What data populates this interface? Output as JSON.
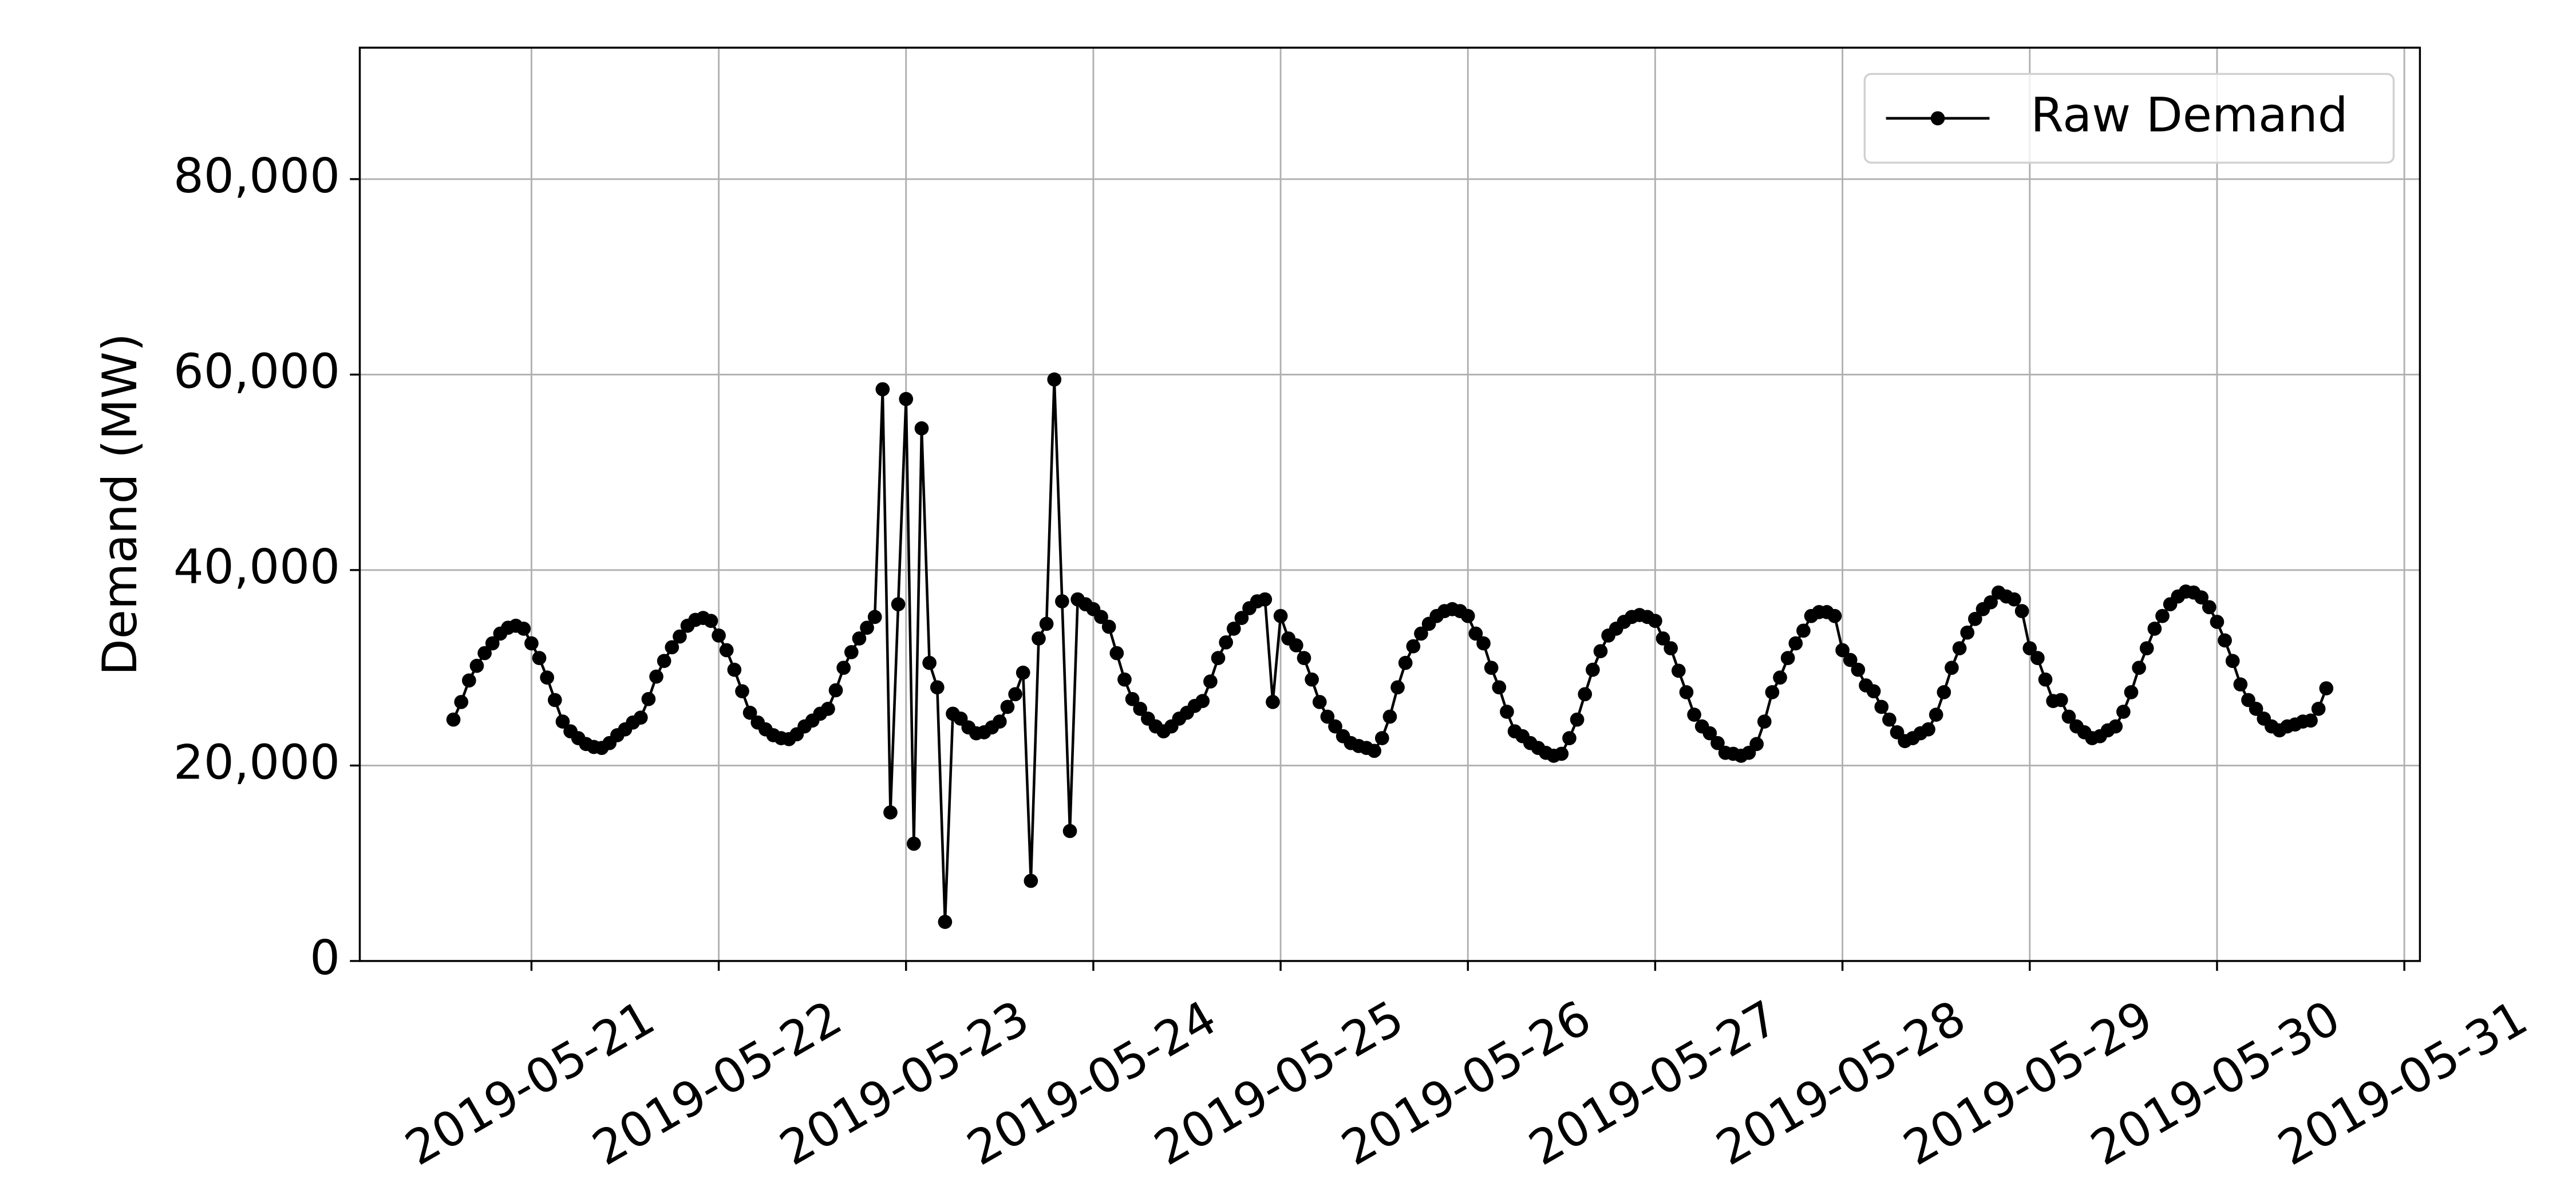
{
  "chart_data": {
    "type": "line",
    "y_label": "Demand (MW)",
    "legend": "upper right",
    "grid": true,
    "ylim": [
      0,
      93450
    ],
    "yticks": [
      0,
      {
        "value": 20000,
        "label": "20,000"
      },
      {
        "value": 40000,
        "label": "40,000"
      },
      {
        "value": 60000,
        "label": "60,000"
      },
      {
        "value": 80000,
        "label": "80,000"
      }
    ],
    "xlim": [
      "2019-05-20 02:00",
      "2019-05-31 02:00"
    ],
    "xticks": [
      "2019-05-21",
      "2019-05-22",
      "2019-05-23",
      "2019-05-24",
      "2019-05-25",
      "2019-05-26",
      "2019-05-27",
      "2019-05-28",
      "2019-05-29",
      "2019-05-30",
      "2019-05-31"
    ],
    "x": [
      "2019-05-20 14:00",
      "2019-05-20 15:00",
      "2019-05-20 16:00",
      "2019-05-20 17:00",
      "2019-05-20 18:00",
      "2019-05-20 19:00",
      "2019-05-20 20:00",
      "2019-05-20 21:00",
      "2019-05-20 22:00",
      "2019-05-20 23:00",
      "2019-05-21 00:00",
      "2019-05-21 01:00",
      "2019-05-21 02:00",
      "2019-05-21 03:00",
      "2019-05-21 04:00",
      "2019-05-21 05:00",
      "2019-05-21 06:00",
      "2019-05-21 07:00",
      "2019-05-21 08:00",
      "2019-05-21 09:00",
      "2019-05-21 10:00",
      "2019-05-21 11:00",
      "2019-05-21 12:00",
      "2019-05-21 13:00",
      "2019-05-21 14:00",
      "2019-05-21 15:00",
      "2019-05-21 16:00",
      "2019-05-21 17:00",
      "2019-05-21 18:00",
      "2019-05-21 19:00",
      "2019-05-21 20:00",
      "2019-05-21 21:00",
      "2019-05-21 22:00",
      "2019-05-21 23:00",
      "2019-05-22 00:00",
      "2019-05-22 01:00",
      "2019-05-22 02:00",
      "2019-05-22 03:00",
      "2019-05-22 04:00",
      "2019-05-22 05:00",
      "2019-05-22 06:00",
      "2019-05-22 07:00",
      "2019-05-22 08:00",
      "2019-05-22 09:00",
      "2019-05-22 10:00",
      "2019-05-22 11:00",
      "2019-05-22 12:00",
      "2019-05-22 13:00",
      "2019-05-22 14:00",
      "2019-05-22 15:00",
      "2019-05-22 16:00",
      "2019-05-22 17:00",
      "2019-05-22 18:00",
      "2019-05-22 19:00",
      "2019-05-22 20:00",
      "2019-05-22 21:00",
      "2019-05-22 22:00",
      "2019-05-22 23:00",
      "2019-05-23 00:00",
      "2019-05-23 01:00",
      "2019-05-23 02:00",
      "2019-05-23 03:00",
      "2019-05-23 04:00",
      "2019-05-23 05:00",
      "2019-05-23 06:00",
      "2019-05-23 07:00",
      "2019-05-23 08:00",
      "2019-05-23 09:00",
      "2019-05-23 10:00",
      "2019-05-23 11:00",
      "2019-05-23 12:00",
      "2019-05-23 13:00",
      "2019-05-23 14:00",
      "2019-05-23 15:00",
      "2019-05-23 16:00",
      "2019-05-23 17:00",
      "2019-05-23 18:00",
      "2019-05-23 19:00",
      "2019-05-23 20:00",
      "2019-05-23 21:00",
      "2019-05-23 22:00",
      "2019-05-23 23:00",
      "2019-05-24 00:00",
      "2019-05-24 01:00",
      "2019-05-24 02:00",
      "2019-05-24 03:00",
      "2019-05-24 04:00",
      "2019-05-24 05:00",
      "2019-05-24 06:00",
      "2019-05-24 07:00",
      "2019-05-24 08:00",
      "2019-05-24 09:00",
      "2019-05-24 10:00",
      "2019-05-24 11:00",
      "2019-05-24 12:00",
      "2019-05-24 13:00",
      "2019-05-24 14:00",
      "2019-05-24 15:00",
      "2019-05-24 16:00",
      "2019-05-24 17:00",
      "2019-05-24 18:00",
      "2019-05-24 19:00",
      "2019-05-24 20:00",
      "2019-05-24 21:00",
      "2019-05-24 22:00",
      "2019-05-24 23:00",
      "2019-05-25 00:00",
      "2019-05-25 01:00",
      "2019-05-25 02:00",
      "2019-05-25 03:00",
      "2019-05-25 04:00",
      "2019-05-25 05:00",
      "2019-05-25 06:00",
      "2019-05-25 07:00",
      "2019-05-25 08:00",
      "2019-05-25 09:00",
      "2019-05-25 10:00",
      "2019-05-25 11:00",
      "2019-05-25 12:00",
      "2019-05-25 13:00",
      "2019-05-25 14:00",
      "2019-05-25 15:00",
      "2019-05-25 16:00",
      "2019-05-25 17:00",
      "2019-05-25 18:00",
      "2019-05-25 19:00",
      "2019-05-25 20:00",
      "2019-05-25 21:00",
      "2019-05-25 22:00",
      "2019-05-25 23:00",
      "2019-05-26 00:00",
      "2019-05-26 01:00",
      "2019-05-26 02:00",
      "2019-05-26 03:00",
      "2019-05-26 04:00",
      "2019-05-26 05:00",
      "2019-05-26 06:00",
      "2019-05-26 07:00",
      "2019-05-26 08:00",
      "2019-05-26 09:00",
      "2019-05-26 10:00",
      "2019-05-26 11:00",
      "2019-05-26 12:00",
      "2019-05-26 13:00",
      "2019-05-26 14:00",
      "2019-05-26 15:00",
      "2019-05-26 16:00",
      "2019-05-26 17:00",
      "2019-05-26 18:00",
      "2019-05-26 19:00",
      "2019-05-26 20:00",
      "2019-05-26 21:00",
      "2019-05-26 22:00",
      "2019-05-26 23:00",
      "2019-05-27 00:00",
      "2019-05-27 01:00",
      "2019-05-27 02:00",
      "2019-05-27 03:00",
      "2019-05-27 04:00",
      "2019-05-27 05:00",
      "2019-05-27 06:00",
      "2019-05-27 07:00",
      "2019-05-27 08:00",
      "2019-05-27 09:00",
      "2019-05-27 10:00",
      "2019-05-27 11:00",
      "2019-05-27 12:00",
      "2019-05-27 13:00",
      "2019-05-27 14:00",
      "2019-05-27 15:00",
      "2019-05-27 16:00",
      "2019-05-27 17:00",
      "2019-05-27 18:00",
      "2019-05-27 19:00",
      "2019-05-27 20:00",
      "2019-05-27 21:00",
      "2019-05-27 22:00",
      "2019-05-27 23:00",
      "2019-05-28 00:00",
      "2019-05-28 01:00",
      "2019-05-28 02:00",
      "2019-05-28 03:00",
      "2019-05-28 04:00",
      "2019-05-28 05:00",
      "2019-05-28 06:00",
      "2019-05-28 07:00",
      "2019-05-28 08:00",
      "2019-05-28 09:00",
      "2019-05-28 10:00",
      "2019-05-28 11:00",
      "2019-05-28 12:00",
      "2019-05-28 13:00",
      "2019-05-28 14:00",
      "2019-05-28 15:00",
      "2019-05-28 16:00",
      "2019-05-28 17:00",
      "2019-05-28 18:00",
      "2019-05-28 19:00",
      "2019-05-28 20:00",
      "2019-05-28 21:00",
      "2019-05-28 22:00",
      "2019-05-28 23:00",
      "2019-05-29 00:00",
      "2019-05-29 01:00",
      "2019-05-29 02:00",
      "2019-05-29 03:00",
      "2019-05-29 04:00",
      "2019-05-29 05:00",
      "2019-05-29 06:00",
      "2019-05-29 07:00",
      "2019-05-29 08:00",
      "2019-05-29 09:00",
      "2019-05-29 10:00",
      "2019-05-29 11:00",
      "2019-05-29 12:00",
      "2019-05-29 13:00",
      "2019-05-29 14:00",
      "2019-05-29 15:00",
      "2019-05-29 16:00",
      "2019-05-29 17:00",
      "2019-05-29 18:00",
      "2019-05-29 19:00",
      "2019-05-29 20:00",
      "2019-05-29 21:00",
      "2019-05-29 22:00",
      "2019-05-29 23:00",
      "2019-05-30 00:00",
      "2019-05-30 01:00",
      "2019-05-30 02:00",
      "2019-05-30 03:00",
      "2019-05-30 04:00",
      "2019-05-30 05:00",
      "2019-05-30 06:00",
      "2019-05-30 07:00",
      "2019-05-30 08:00",
      "2019-05-30 09:00",
      "2019-05-30 10:00",
      "2019-05-30 11:00",
      "2019-05-30 12:00",
      "2019-05-30 13:00",
      "2019-05-30 14:00"
    ],
    "series": [
      {
        "name": "Raw Demand",
        "color": "#000000",
        "values": [
          24700,
          26500,
          28700,
          30200,
          31500,
          32500,
          33500,
          34100,
          34300,
          34000,
          32500,
          31000,
          29000,
          26700,
          24500,
          23500,
          22800,
          22200,
          21900,
          21800,
          22300,
          23100,
          23700,
          24400,
          24900,
          26800,
          29100,
          30700,
          32100,
          33200,
          34300,
          34900,
          35100,
          34800,
          33300,
          31800,
          29800,
          27600,
          25400,
          24400,
          23700,
          23100,
          22800,
          22700,
          23200,
          24000,
          24600,
          25300,
          25800,
          27700,
          30000,
          31600,
          33000,
          34100,
          35200,
          58500,
          15200,
          36500,
          57500,
          12000,
          54500,
          30500,
          28000,
          4000,
          25300,
          24800,
          23900,
          23300,
          23400,
          23900,
          24500,
          26000,
          27300,
          29500,
          8200,
          33000,
          34500,
          59500,
          36800,
          13300,
          37000,
          36500,
          36000,
          35200,
          34200,
          31500,
          28800,
          26800,
          25800,
          24800,
          24000,
          23500,
          24000,
          24800,
          25400,
          26100,
          26600,
          28600,
          31000,
          32600,
          34000,
          35100,
          36100,
          36800,
          37000,
          26500,
          35300,
          33000,
          32300,
          31000,
          28800,
          26500,
          25000,
          24000,
          23000,
          22300,
          22000,
          21800,
          21500,
          22800,
          25000,
          28000,
          30500,
          32200,
          33500,
          34500,
          35300,
          35800,
          36000,
          35800,
          35300,
          33500,
          32500,
          30000,
          28000,
          25500,
          23500,
          23000,
          22300,
          21800,
          21300,
          21000,
          21200,
          22800,
          24700,
          27300,
          29800,
          31700,
          33300,
          34000,
          34700,
          35200,
          35400,
          35200,
          34800,
          33000,
          32000,
          29700,
          27500,
          25200,
          24000,
          23300,
          22300,
          21300,
          21200,
          21000,
          21300,
          22200,
          24500,
          27500,
          29000,
          31000,
          32500,
          33800,
          35300,
          35700,
          35700,
          35300,
          31800,
          30800,
          29800,
          28200,
          27600,
          26000,
          24700,
          23400,
          22500,
          22800,
          23300,
          23700,
          25200,
          27500,
          30000,
          32000,
          33600,
          35000,
          36000,
          36700,
          37700,
          37300,
          37000,
          35800,
          32000,
          31000,
          28800,
          26600,
          26700,
          25000,
          24000,
          23400,
          22800,
          23000,
          23600,
          24000,
          25500,
          27500,
          30000,
          32000,
          34000,
          35300,
          36500,
          37300,
          37800,
          37700,
          37200,
          36200,
          34700,
          32800,
          30700,
          28300,
          26700,
          25800,
          24800,
          24000,
          23600,
          24000,
          24200,
          24500,
          24600,
          25800,
          27900
        ]
      }
    ]
  }
}
